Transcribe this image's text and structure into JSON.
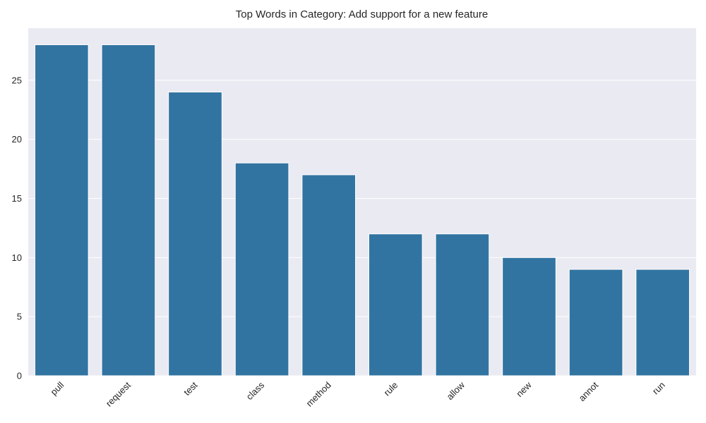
{
  "chart_data": {
    "type": "bar",
    "title": "Top Words in Category: Add support for a new feature",
    "xlabel": "",
    "ylabel": "",
    "categories": [
      "pull",
      "request",
      "test",
      "class",
      "method",
      "rule",
      "allow",
      "new",
      "annot",
      "run"
    ],
    "values": [
      28,
      28,
      24,
      18,
      17,
      12,
      12,
      10,
      9,
      9
    ],
    "yticks": [
      0,
      5,
      10,
      15,
      20,
      25
    ],
    "ylim": [
      0,
      29.4
    ],
    "grid": true,
    "x_tick_rotation": 45,
    "colors": {
      "bar": "#3274a1",
      "background": "#eaeaf2",
      "grid": "#ffffff"
    }
  }
}
